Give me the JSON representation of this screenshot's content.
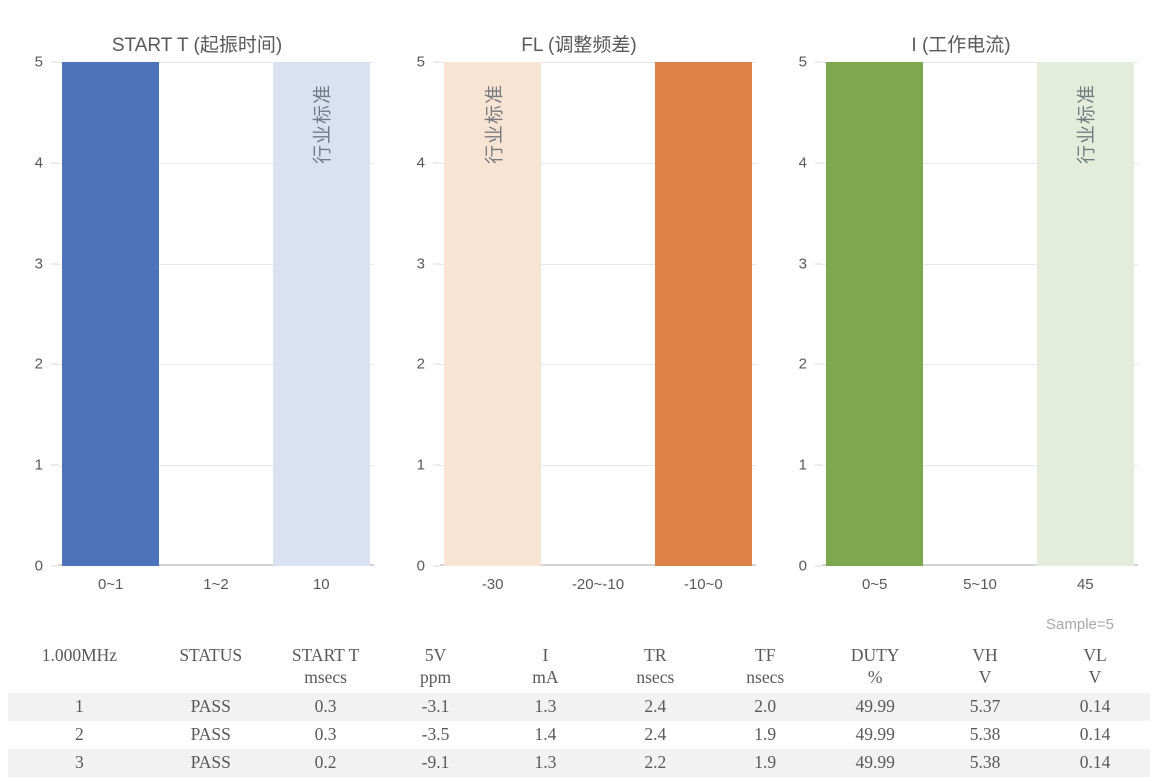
{
  "chart_data": [
    {
      "type": "bar",
      "title": "START T (起振时间)",
      "categories": [
        "0~1",
        "1~2",
        "10"
      ],
      "values": [
        5,
        0,
        5
      ],
      "bar_colors": [
        "#4d73bb",
        null,
        "#dae2f1"
      ],
      "bar_labels": [
        null,
        null,
        "行业标准"
      ],
      "xlabel": "",
      "ylabel": "",
      "ylim": [
        0,
        5
      ],
      "yticks": [
        0,
        1,
        2,
        3,
        4,
        5
      ],
      "grid": "horizontal",
      "legend": "none"
    },
    {
      "type": "bar",
      "title": "FL (调整频差)",
      "categories": [
        "-30",
        "-20~-10",
        "-10~0"
      ],
      "values": [
        5,
        0,
        5
      ],
      "bar_colors": [
        "#f8e4d3",
        null,
        "#dd8247"
      ],
      "bar_labels": [
        "行业标准",
        null,
        null
      ],
      "xlabel": "",
      "ylabel": "",
      "ylim": [
        0,
        5
      ],
      "yticks": [
        0,
        1,
        2,
        3,
        4,
        5
      ],
      "grid": "horizontal",
      "legend": "none"
    },
    {
      "type": "bar",
      "title": "I (工作电流)",
      "categories": [
        "0~5",
        "5~10",
        "45"
      ],
      "values": [
        5,
        0,
        5
      ],
      "bar_colors": [
        "#7da850",
        null,
        "#e3edda"
      ],
      "bar_labels": [
        null,
        null,
        "行业标准"
      ],
      "xlabel": "",
      "ylabel": "",
      "ylim": [
        0,
        5
      ],
      "yticks": [
        0,
        1,
        2,
        3,
        4,
        5
      ],
      "grid": "horizontal",
      "legend": "none"
    }
  ],
  "table": {
    "sample_note": "Sample=5",
    "columns": [
      {
        "label": "1.000MHz",
        "unit": ""
      },
      {
        "label": "STATUS",
        "unit": ""
      },
      {
        "label": "START T",
        "unit": "msecs"
      },
      {
        "label": "5V",
        "unit": "ppm"
      },
      {
        "label": "I",
        "unit": "mA"
      },
      {
        "label": "TR",
        "unit": "nsecs"
      },
      {
        "label": "TF",
        "unit": "nsecs"
      },
      {
        "label": "DUTY",
        "unit": "%"
      },
      {
        "label": "VH",
        "unit": "V"
      },
      {
        "label": "VL",
        "unit": "V"
      }
    ],
    "rows": [
      [
        "1",
        "PASS",
        "0.3",
        "-3.1",
        "1.3",
        "2.4",
        "2.0",
        "49.99",
        "5.37",
        "0.14"
      ],
      [
        "2",
        "PASS",
        "0.3",
        "-3.5",
        "1.4",
        "2.4",
        "1.9",
        "49.99",
        "5.38",
        "0.14"
      ],
      [
        "3",
        "PASS",
        "0.2",
        "-9.1",
        "1.3",
        "2.2",
        "1.9",
        "49.99",
        "5.38",
        "0.14"
      ]
    ]
  },
  "colors": {
    "bar_blue": "#4d73bb",
    "bar_blue_light": "#dae2f1",
    "bar_orange": "#dd8247",
    "bar_orange_light": "#f8e4d3",
    "bar_green": "#7da850",
    "bar_green_light": "#e3edda",
    "gridline": "#e8e8e8",
    "axis": "#d4d4d4",
    "text": "#595959",
    "row_stripe": "#f2f2f2",
    "sample_note": "#a8a8a8"
  }
}
